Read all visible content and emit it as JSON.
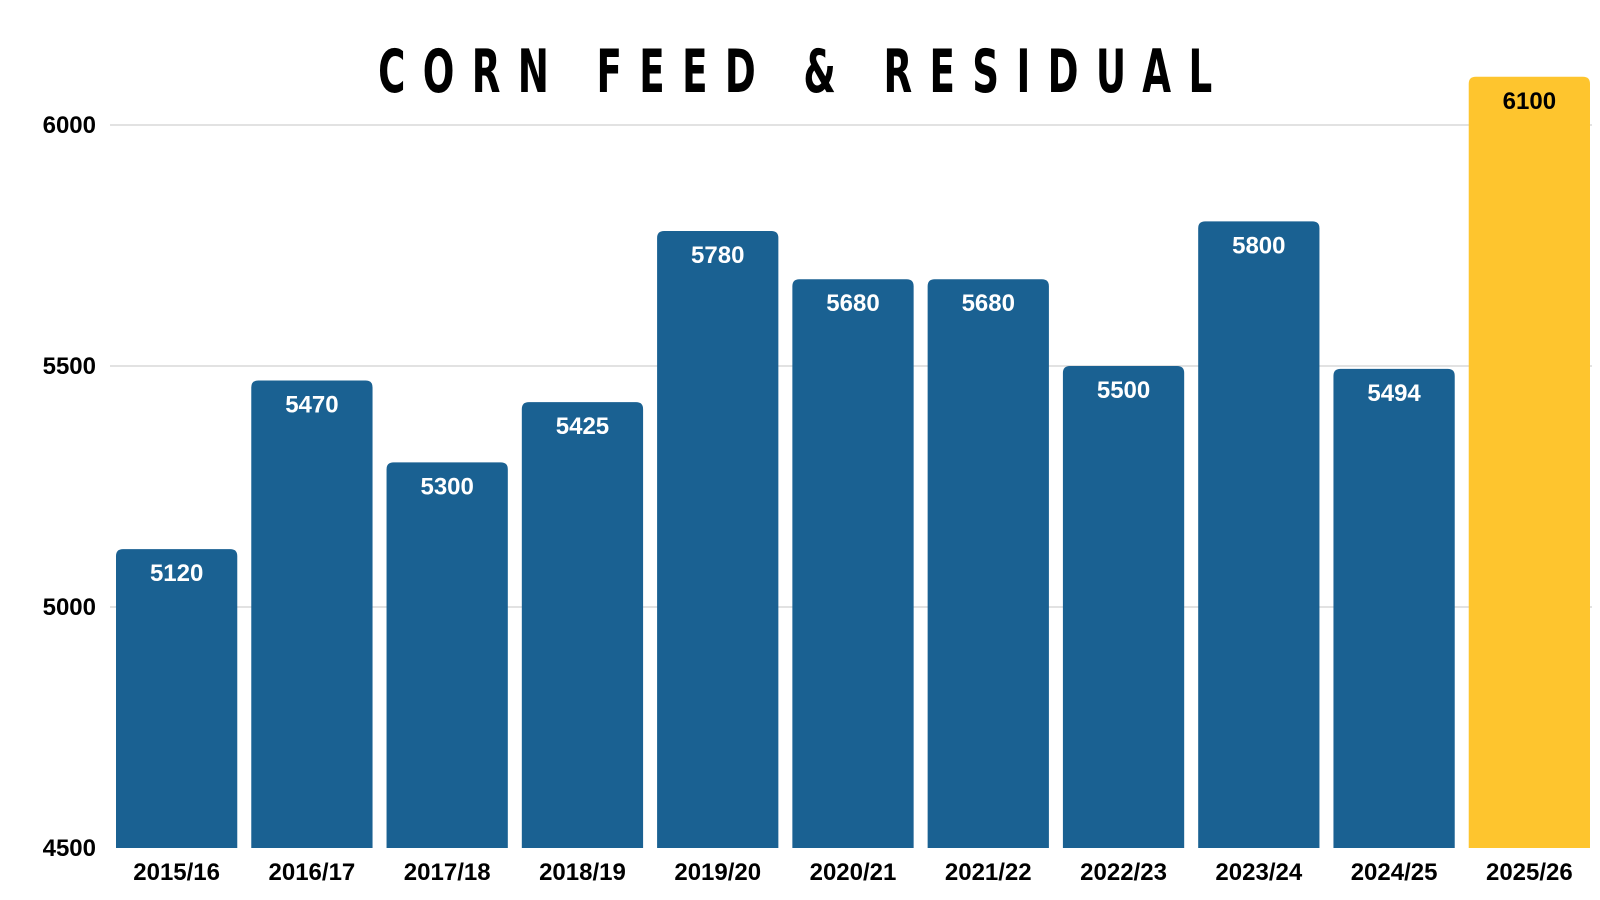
{
  "chart_data": {
    "type": "bar",
    "title": "CORN FEED & RESIDUAL",
    "xlabel": "",
    "ylabel": "",
    "categories": [
      "2015/16",
      "2016/17",
      "2017/18",
      "2018/19",
      "2019/20",
      "2020/21",
      "2021/22",
      "2022/23",
      "2023/24",
      "2024/25",
      "2025/26"
    ],
    "values": [
      5120,
      5470,
      5300,
      5425,
      5780,
      5680,
      5680,
      5500,
      5800,
      5494,
      6100
    ],
    "data_labels": [
      "5120",
      "5470",
      "5300",
      "5425",
      "5780",
      "5680",
      "5680",
      "5500",
      "5800",
      "5494",
      "6100"
    ],
    "ylim": [
      4500,
      6000
    ],
    "yticks": [
      "4500",
      "5000",
      "5500",
      "6000"
    ],
    "grid": true,
    "legend": "none",
    "colors": {
      "bar": "#1a6192",
      "highlight_bar": "#fec52e",
      "label_on_bar": "#ffffff",
      "label_on_highlight": "#000000",
      "gridline": "#d9d9d9",
      "text": "#000000"
    },
    "highlight_index": 10
  }
}
